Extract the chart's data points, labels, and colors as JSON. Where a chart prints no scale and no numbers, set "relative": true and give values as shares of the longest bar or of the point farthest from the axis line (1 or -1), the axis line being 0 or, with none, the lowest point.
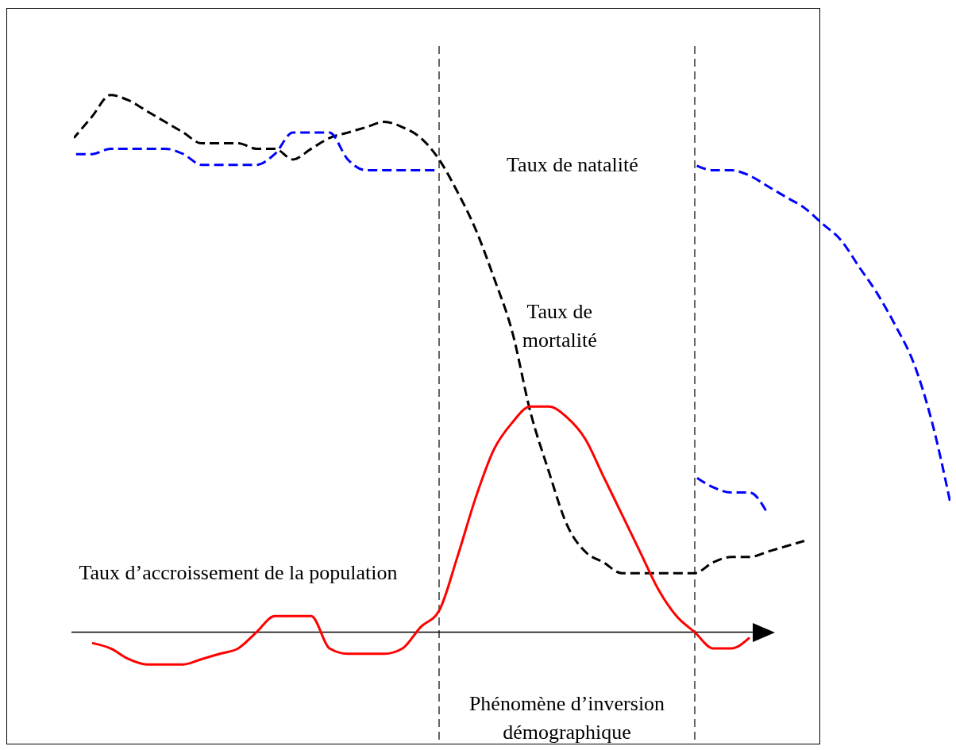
{
  "chart_data": {
    "type": "line",
    "relative": true,
    "categories": [
      null,
      null,
      null,
      null,
      null,
      null,
      null,
      null,
      null,
      null,
      null,
      null,
      null,
      null,
      null,
      null,
      null,
      null,
      null,
      null,
      null,
      null,
      null,
      null,
      null,
      null,
      null,
      null,
      null,
      null,
      null,
      null,
      null,
      null,
      null,
      null,
      null,
      null,
      null,
      null,
      null,
      null,
      null,
      null,
      null,
      null,
      null,
      null,
      null
    ],
    "tick_labels": false,
    "marker": "none",
    "series": [
      {
        "color": "#000000",
        "line_style": "dashed",
        "values": [
          0.92,
          0.96,
          1.0,
          0.99,
          0.97,
          0.95,
          0.93,
          0.91,
          0.91,
          0.91,
          0.9,
          0.9,
          0.88,
          0.9,
          0.92,
          0.93,
          0.94,
          0.95,
          0.94,
          0.92,
          0.88,
          0.82,
          0.75,
          0.66,
          0.56,
          0.41,
          0.3,
          0.2,
          0.15,
          0.13,
          0.11,
          0.11,
          0.11,
          0.11,
          0.11,
          0.13,
          0.14,
          0.14,
          0.15,
          0.16,
          0.17,
          null,
          null,
          null,
          null,
          null,
          null,
          null,
          null
        ]
      },
      {
        "color": "#0000ff",
        "line_style": "dashed",
        "values": [
          0.89,
          0.89,
          0.9,
          0.9,
          0.9,
          0.9,
          0.89,
          0.87,
          0.87,
          0.87,
          0.87,
          0.89,
          0.93,
          0.93,
          0.93,
          0.88,
          0.86,
          0.86,
          0.86,
          0.86,
          0.86,
          null,
          null,
          null,
          null,
          null,
          null,
          null,
          null,
          null,
          null,
          null,
          null,
          null,
          0.87,
          0.86,
          0.86,
          0.85,
          0.83,
          0.81,
          0.79,
          0.76,
          0.73,
          0.68,
          0.63,
          0.57,
          0.5,
          0.39,
          0.24
        ]
      },
      {
        "color": "#0000ff",
        "line_style": "dashed",
        "values": [
          null,
          null,
          null,
          null,
          null,
          null,
          null,
          null,
          null,
          null,
          null,
          null,
          null,
          null,
          null,
          null,
          null,
          null,
          null,
          null,
          null,
          null,
          null,
          null,
          null,
          null,
          null,
          null,
          null,
          null,
          null,
          null,
          null,
          null,
          0.29,
          0.27,
          0.26,
          0.26,
          0.22,
          null,
          null,
          null,
          null,
          null,
          null,
          null,
          null,
          null,
          null
        ]
      },
      {
        "color": "#ff0000",
        "line_style": "solid",
        "values": [
          null,
          -0.02,
          -0.03,
          -0.05,
          -0.06,
          -0.06,
          -0.06,
          -0.05,
          -0.04,
          -0.03,
          0.0,
          0.03,
          0.03,
          0.03,
          -0.03,
          -0.04,
          -0.04,
          -0.04,
          -0.03,
          0.01,
          0.04,
          0.14,
          0.25,
          0.34,
          0.39,
          0.42,
          0.42,
          0.4,
          0.36,
          0.29,
          0.22,
          0.15,
          0.08,
          0.03,
          0.0,
          -0.03,
          -0.03,
          -0.01,
          null,
          null,
          null,
          null,
          null,
          null,
          null,
          null,
          null,
          null,
          null
        ]
      }
    ],
    "annotations": [
      "Taux de natalité",
      "Taux de mortalité",
      "Taux d’accroissement de la population",
      "Phénomène d’inversion démographique"
    ]
  }
}
